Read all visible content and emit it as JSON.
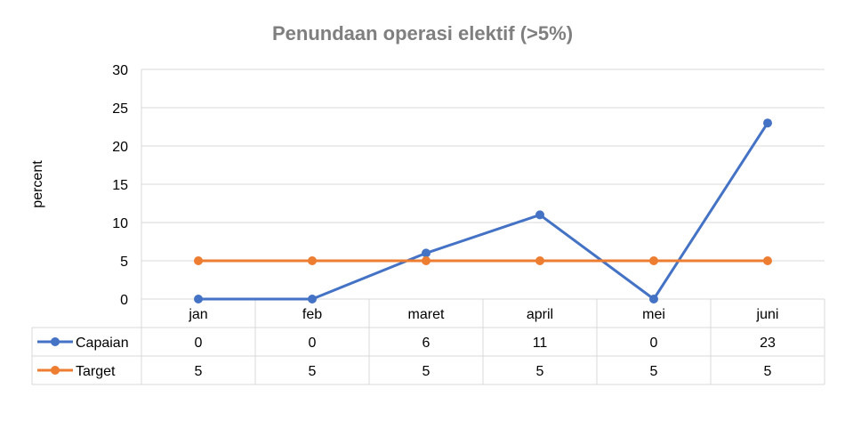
{
  "chart_data": {
    "type": "line",
    "title": "Penundaan operasi elektif (>5%)",
    "ylabel": "percent",
    "xlabel": "",
    "ylim": [
      0,
      30
    ],
    "yticks": [
      0,
      5,
      10,
      15,
      20,
      25,
      30
    ],
    "grid": true,
    "legend": "data-table",
    "categories": [
      "jan",
      "feb",
      "maret",
      "april",
      "mei",
      "juni"
    ],
    "series": [
      {
        "name": "Capaian",
        "color": "#4472C4",
        "values": [
          0,
          0,
          6,
          11,
          0,
          23
        ]
      },
      {
        "name": "Target",
        "color": "#ED7D31",
        "values": [
          5,
          5,
          5,
          5,
          5,
          5
        ]
      }
    ]
  }
}
